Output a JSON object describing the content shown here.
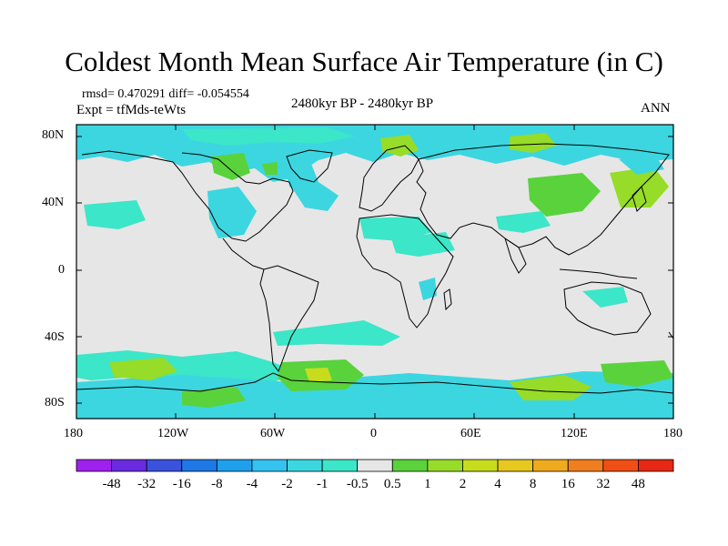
{
  "title": "Coldest Month Mean Surface Air Temperature (in C)",
  "stats": {
    "rmsd_diff": "rmsd= 0.470291 diff= -0.054554",
    "expt": "Expt = tfMds-teWts",
    "period": "2480kyr BP - 2480kyr BP",
    "season": "ANN"
  },
  "map": {
    "lat_labels": [
      "80N",
      "40N",
      "0",
      "40S",
      "80S"
    ],
    "lon_labels": [
      "180",
      "120W",
      "60W",
      "0",
      "60E",
      "120E",
      "180"
    ],
    "ocean_color": "#e6e6e6",
    "coast_color": "#000000"
  },
  "colorbar": {
    "colors": [
      "#a020f0",
      "#6a2be0",
      "#3a52dc",
      "#1e78e6",
      "#1ea0ee",
      "#34c3f0",
      "#3cd6e0",
      "#3ce6c8",
      "#e6e6e6",
      "#5ad23c",
      "#96dc28",
      "#c8dc1e",
      "#e6c81e",
      "#f0aa1e",
      "#f07e1e",
      "#f04e14",
      "#e62814"
    ],
    "labels": [
      "-48",
      "-32",
      "-16",
      "-8",
      "-4",
      "-2",
      "-1",
      "-0.5",
      "0.5",
      "1",
      "2",
      "4",
      "8",
      "16",
      "32",
      "48"
    ]
  }
}
